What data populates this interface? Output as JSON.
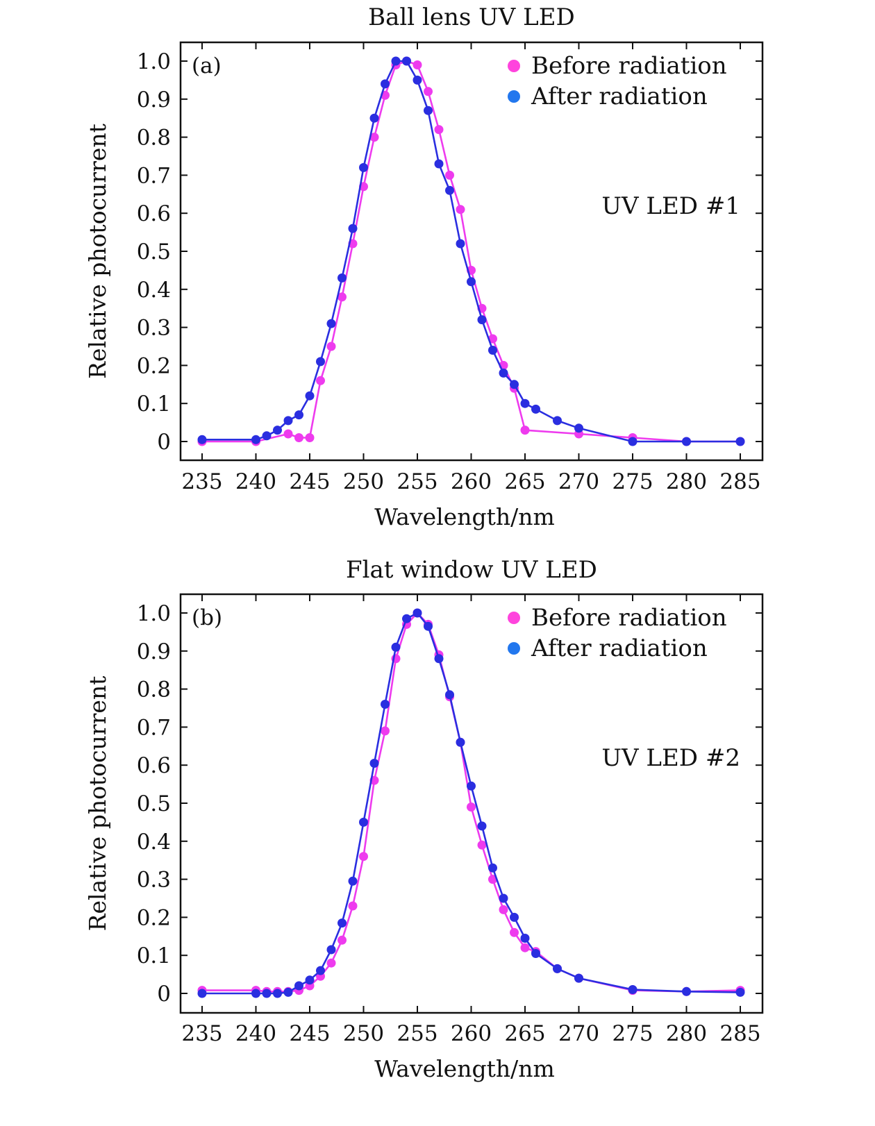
{
  "colors": {
    "before": "#ee3bee",
    "after": "#2a2ee0",
    "before_legend": "#ff44dd",
    "after_legend": "#2277ee"
  },
  "chart_data": [
    {
      "type": "line",
      "title": "Ball lens UV LED",
      "panel_label": "(a)",
      "annotation": "UV LED #1",
      "xlabel": "Wavelength/nm",
      "ylabel": "Relative photocurrent",
      "xlim": [
        233,
        287
      ],
      "ylim": [
        -0.05,
        1.05
      ],
      "xticks": [
        235,
        240,
        245,
        250,
        255,
        260,
        265,
        270,
        275,
        280,
        285
      ],
      "yticks": [
        0,
        0.1,
        0.2,
        0.3,
        0.4,
        0.5,
        0.6,
        0.7,
        0.8,
        0.9,
        1.0
      ],
      "ytick_labels": [
        "0",
        "0.1",
        "0.2",
        "0.3",
        "0.4",
        "0.5",
        "0.6",
        "0.7",
        "0.8",
        "0.9",
        "1.0"
      ],
      "legend_position": "top-right",
      "series": [
        {
          "name": "Before radiation",
          "color_key": "before",
          "x": [
            235,
            240,
            243,
            244,
            245,
            246,
            247,
            248,
            249,
            250,
            251,
            252,
            253,
            254,
            255,
            256,
            257,
            258,
            259,
            260,
            261,
            262,
            263,
            264,
            265,
            270,
            275,
            280,
            285
          ],
          "y": [
            0.0,
            0.0,
            0.02,
            0.01,
            0.01,
            0.16,
            0.25,
            0.38,
            0.52,
            0.67,
            0.8,
            0.91,
            0.99,
            1.0,
            0.99,
            0.92,
            0.82,
            0.7,
            0.61,
            0.45,
            0.35,
            0.27,
            0.2,
            0.14,
            0.03,
            0.02,
            0.01,
            0.0,
            0.0
          ]
        },
        {
          "name": "After radiation",
          "color_key": "after",
          "x": [
            235,
            240,
            241,
            242,
            243,
            244,
            245,
            246,
            247,
            248,
            249,
            250,
            251,
            252,
            253,
            254,
            255,
            256,
            257,
            258,
            259,
            260,
            261,
            262,
            263,
            264,
            265,
            266,
            268,
            270,
            275,
            280,
            285
          ],
          "y": [
            0.005,
            0.005,
            0.015,
            0.03,
            0.055,
            0.07,
            0.12,
            0.21,
            0.31,
            0.43,
            0.56,
            0.72,
            0.85,
            0.94,
            1.0,
            1.0,
            0.95,
            0.87,
            0.73,
            0.66,
            0.52,
            0.42,
            0.32,
            0.24,
            0.18,
            0.15,
            0.1,
            0.085,
            0.055,
            0.035,
            0.0,
            0.0,
            0.0
          ]
        }
      ]
    },
    {
      "type": "line",
      "title": "Flat window UV LED",
      "panel_label": "(b)",
      "annotation": "UV LED #2",
      "xlabel": "Wavelength/nm",
      "ylabel": "Relative photocurrent",
      "xlim": [
        233,
        287
      ],
      "ylim": [
        -0.05,
        1.05
      ],
      "xticks": [
        235,
        240,
        245,
        250,
        255,
        260,
        265,
        270,
        275,
        280,
        285
      ],
      "yticks": [
        0,
        0.1,
        0.2,
        0.3,
        0.4,
        0.5,
        0.6,
        0.7,
        0.8,
        0.9,
        1.0
      ],
      "ytick_labels": [
        "0",
        "0.1",
        "0.2",
        "0.3",
        "0.4",
        "0.5",
        "0.6",
        "0.7",
        "0.8",
        "0.9",
        "1.0"
      ],
      "legend_position": "top-right",
      "series": [
        {
          "name": "Before radiation",
          "color_key": "before",
          "x": [
            235,
            240,
            241,
            242,
            243,
            244,
            245,
            246,
            247,
            248,
            249,
            250,
            251,
            252,
            253,
            254,
            255,
            256,
            257,
            258,
            259,
            260,
            261,
            262,
            263,
            264,
            265,
            266,
            268,
            270,
            275,
            280,
            285
          ],
          "y": [
            0.008,
            0.008,
            0.005,
            0.005,
            0.005,
            0.008,
            0.02,
            0.045,
            0.08,
            0.14,
            0.23,
            0.36,
            0.56,
            0.69,
            0.88,
            0.97,
            1.0,
            0.97,
            0.89,
            0.78,
            0.66,
            0.49,
            0.39,
            0.3,
            0.22,
            0.16,
            0.12,
            0.11,
            0.065,
            0.04,
            0.008,
            0.005,
            0.008
          ]
        },
        {
          "name": "After radiation",
          "color_key": "after",
          "x": [
            235,
            240,
            241,
            242,
            243,
            244,
            245,
            246,
            247,
            248,
            249,
            250,
            251,
            252,
            253,
            254,
            255,
            256,
            257,
            258,
            259,
            260,
            261,
            262,
            263,
            264,
            265,
            266,
            268,
            270,
            275,
            280,
            285
          ],
          "y": [
            0.0,
            0.0,
            0.0,
            0.0,
            0.003,
            0.02,
            0.035,
            0.06,
            0.115,
            0.185,
            0.295,
            0.45,
            0.605,
            0.76,
            0.91,
            0.985,
            1.0,
            0.965,
            0.88,
            0.785,
            0.66,
            0.545,
            0.44,
            0.33,
            0.25,
            0.2,
            0.145,
            0.105,
            0.065,
            0.04,
            0.01,
            0.005,
            0.003
          ]
        }
      ]
    }
  ]
}
